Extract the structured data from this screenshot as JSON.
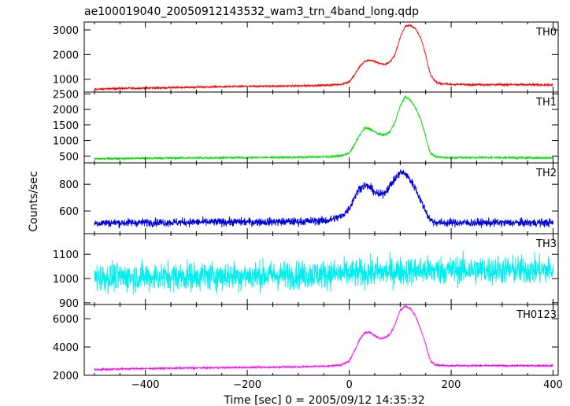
{
  "chart_data": {
    "type": "line",
    "title": "ae100019040_20050912143532_wam3_trn_4band_long.qdp",
    "xlabel": "Time [sec] 0 = 2005/09/12 14:35:32",
    "ylabel": "Counts/sec",
    "xlim": [
      -520,
      410
    ],
    "xticks": [
      -400,
      -200,
      0,
      200,
      400
    ],
    "x_tick_labels": [
      "−400",
      "−200",
      "0",
      "200",
      "400"
    ],
    "grid": false,
    "legend": "none",
    "panels": [
      {
        "name": "TH0",
        "color": "#ff0000",
        "ylim": [
          480,
          3320
        ],
        "yticks": [
          1000,
          2000,
          3000
        ],
        "y_tick_labels": [
          "1000",
          "2000",
          "3000"
        ],
        "noise": 28,
        "x": [
          -500,
          -450,
          -400,
          -300,
          -200,
          -100,
          -40,
          -15,
          0,
          10,
          20,
          30,
          40,
          50,
          60,
          70,
          80,
          90,
          100,
          110,
          120,
          130,
          140,
          150,
          155,
          160,
          170,
          180,
          200,
          300,
          400
        ],
        "y": [
          590,
          630,
          640,
          680,
          710,
          730,
          760,
          800,
          900,
          1150,
          1500,
          1720,
          1780,
          1720,
          1640,
          1600,
          1700,
          2000,
          2700,
          3150,
          3200,
          3050,
          2700,
          2000,
          1500,
          1150,
          900,
          820,
          790,
          780,
          770
        ]
      },
      {
        "name": "TH1",
        "color": "#00dd00",
        "ylim": [
          280,
          2560
        ],
        "yticks": [
          500,
          1000,
          1500,
          2000,
          2500
        ],
        "y_tick_labels": [
          "500",
          "1000",
          "1500",
          "2000",
          "2500"
        ],
        "noise": 24,
        "x": [
          -500,
          -450,
          -400,
          -300,
          -200,
          -100,
          -40,
          -15,
          0,
          10,
          20,
          30,
          40,
          50,
          60,
          70,
          80,
          90,
          100,
          110,
          120,
          130,
          140,
          150,
          155,
          160,
          170,
          180,
          200,
          300,
          400
        ],
        "y": [
          410,
          420,
          430,
          440,
          450,
          460,
          480,
          510,
          600,
          850,
          1150,
          1400,
          1380,
          1280,
          1200,
          1180,
          1280,
          1600,
          2100,
          2420,
          2300,
          2050,
          1700,
          1150,
          800,
          580,
          470,
          460,
          450,
          450,
          440
        ]
      },
      {
        "name": "TH2",
        "color": "#0000dd",
        "ylim": [
          430,
          960
        ],
        "yticks": [
          600,
          800
        ],
        "y_tick_labels": [
          "600",
          "800"
        ],
        "noise": 22,
        "x": [
          -500,
          -450,
          -400,
          -300,
          -200,
          -100,
          -40,
          -15,
          0,
          10,
          20,
          30,
          40,
          50,
          60,
          70,
          80,
          90,
          100,
          110,
          120,
          130,
          140,
          150,
          155,
          160,
          170,
          180,
          200,
          300,
          400
        ],
        "y": [
          510,
          512,
          514,
          516,
          518,
          520,
          530,
          560,
          620,
          700,
          770,
          790,
          780,
          740,
          720,
          740,
          790,
          840,
          890,
          880,
          830,
          770,
          680,
          600,
          560,
          530,
          515,
          512,
          512,
          512,
          512
        ]
      },
      {
        "name": "TH3",
        "color": "#00eeee",
        "ylim": [
          893,
          1185
        ],
        "yticks": [
          900,
          1000,
          1100
        ],
        "y_tick_labels": [
          "900",
          "1000",
          "1100"
        ],
        "noise": 42,
        "x": [
          -500,
          -400,
          -300,
          -200,
          -100,
          0,
          100,
          200,
          300,
          400
        ],
        "y": [
          1005,
          1007,
          1010,
          1012,
          1015,
          1020,
          1030,
          1035,
          1035,
          1035
        ]
      },
      {
        "name": "TH0123",
        "color": "#ff00ff",
        "ylim": [
          2000,
          7000
        ],
        "yticks": [
          2000,
          4000,
          6000
        ],
        "y_tick_labels": [
          "2000",
          "4000",
          "6000"
        ],
        "noise": 45,
        "x": [
          -500,
          -450,
          -400,
          -300,
          -200,
          -100,
          -40,
          -15,
          0,
          10,
          20,
          30,
          40,
          50,
          60,
          70,
          80,
          90,
          100,
          110,
          120,
          130,
          140,
          150,
          155,
          160,
          170,
          180,
          200,
          300,
          400
        ],
        "y": [
          2400,
          2450,
          2480,
          2520,
          2560,
          2600,
          2650,
          2750,
          3000,
          3700,
          4500,
          5000,
          5050,
          4800,
          4600,
          4650,
          4900,
          5600,
          6600,
          6900,
          6700,
          6200,
          5300,
          4200,
          3500,
          3000,
          2750,
          2700,
          2680,
          2680,
          2680
        ]
      }
    ]
  }
}
